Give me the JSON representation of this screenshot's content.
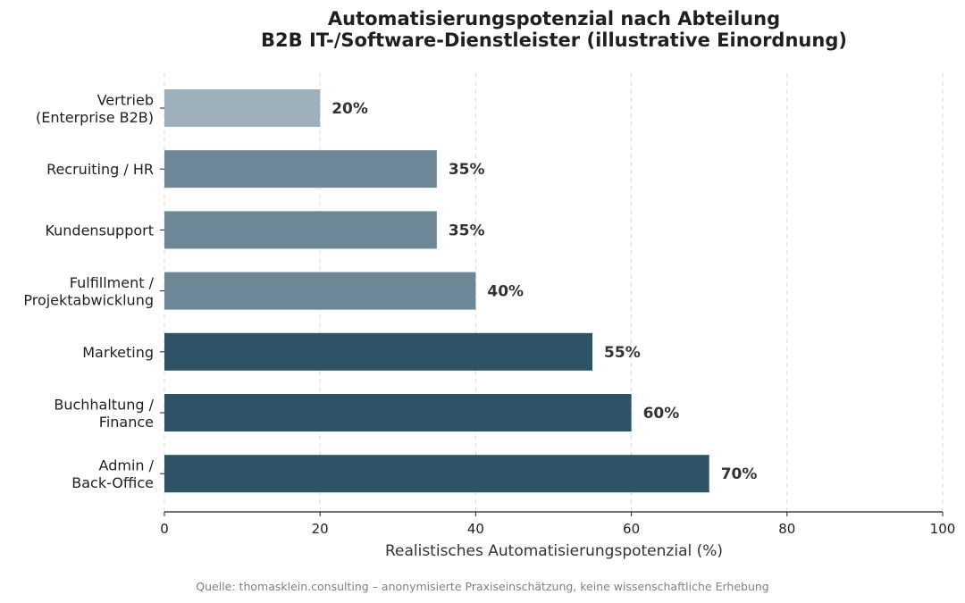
{
  "chart_data": {
    "type": "bar",
    "orientation": "horizontal",
    "title": "Automatisierungspotenzial nach Abteilung",
    "subtitle": "B2B IT-/Software-Dienstleister (illustrative Einordnung)",
    "xlabel": "Realistisches Automatisierungspotenzial (%)",
    "ylabel": "",
    "xlim": [
      0,
      100
    ],
    "xticks": [
      0,
      20,
      40,
      60,
      80,
      100
    ],
    "grid": "x-dashed",
    "categories": [
      [
        "Vertrieb",
        "(Enterprise B2B)"
      ],
      [
        "Recruiting / HR"
      ],
      [
        "Kundensupport"
      ],
      [
        "Fulfillment /",
        "Projektabwicklung"
      ],
      [
        "Marketing"
      ],
      [
        "Buchhaltung /",
        "Finance"
      ],
      [
        "Admin /",
        "Back-Office"
      ]
    ],
    "values": [
      20,
      35,
      35,
      40,
      55,
      60,
      70
    ],
    "value_labels": [
      "20%",
      "35%",
      "35%",
      "40%",
      "55%",
      "60%",
      "70%"
    ],
    "colors": [
      "#9fb0bd",
      "#6e8796",
      "#6e8796",
      "#6e8796",
      "#2f5366",
      "#2f5366",
      "#2f5366"
    ],
    "source": "Quelle: thomasklein.consulting – anonymisierte Praxiseinschätzung, keine wissenschaftliche Erhebung"
  }
}
